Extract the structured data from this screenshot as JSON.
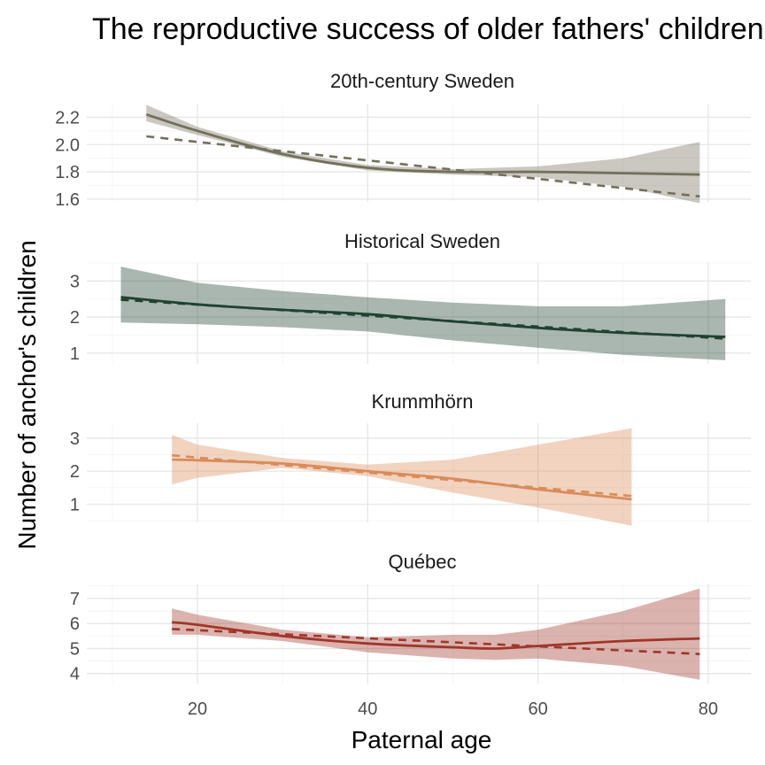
{
  "chart_data": {
    "type": "line",
    "title": "The reproductive success of older fathers' children",
    "xlabel": "Paternal age",
    "ylabel": "Number of anchor's children",
    "xlim": [
      7,
      85
    ],
    "x_ticks": [
      20,
      40,
      60,
      80
    ],
    "grid": true,
    "legend": "none",
    "panels": [
      {
        "name": "20th-century Sweden",
        "color": "#736f5a",
        "ylim": [
          1.58,
          2.3
        ],
        "y_ticks": [
          1.6,
          1.8,
          2.0,
          2.2
        ],
        "y_tick_labels": [
          "1.6",
          "1.8",
          "2.0",
          "2.2"
        ],
        "x": [
          14,
          20,
          30,
          40,
          50,
          60,
          70,
          79
        ],
        "smooth": [
          2.22,
          2.1,
          1.93,
          1.83,
          1.8,
          1.8,
          1.79,
          1.78
        ],
        "lower": [
          2.17,
          2.07,
          1.91,
          1.81,
          1.78,
          1.76,
          1.69,
          1.57
        ],
        "upper": [
          2.29,
          2.13,
          1.95,
          1.85,
          1.82,
          1.84,
          1.9,
          2.02
        ],
        "linear_x": [
          14,
          79
        ],
        "linear": [
          2.06,
          1.62
        ]
      },
      {
        "name": "Historical Sweden",
        "color": "#1f4231",
        "ylim": [
          0.7,
          3.5
        ],
        "y_ticks": [
          1,
          2,
          3
        ],
        "y_tick_labels": [
          "1",
          "2",
          "3"
        ],
        "x": [
          11,
          20,
          30,
          40,
          50,
          60,
          70,
          82
        ],
        "smooth": [
          2.55,
          2.35,
          2.2,
          2.08,
          1.88,
          1.7,
          1.56,
          1.45
        ],
        "lower": [
          1.85,
          1.8,
          1.72,
          1.6,
          1.35,
          1.15,
          0.95,
          0.8
        ],
        "upper": [
          3.4,
          2.95,
          2.72,
          2.55,
          2.4,
          2.3,
          2.3,
          2.5
        ],
        "linear_x": [
          11,
          82
        ],
        "linear": [
          2.48,
          1.4
        ]
      },
      {
        "name": "Krummhörn",
        "color": "#d98c5a",
        "ylim": [
          0.45,
          3.45
        ],
        "y_ticks": [
          1,
          2,
          3
        ],
        "y_tick_labels": [
          "1",
          "2",
          "3"
        ],
        "x": [
          17,
          20,
          30,
          40,
          50,
          60,
          71
        ],
        "smooth": [
          2.35,
          2.33,
          2.23,
          2.0,
          1.77,
          1.45,
          1.15
        ],
        "lower": [
          1.6,
          1.8,
          2.1,
          1.85,
          1.35,
          0.9,
          0.35
        ],
        "upper": [
          3.1,
          2.8,
          2.4,
          2.2,
          2.35,
          2.8,
          3.3
        ],
        "linear_x": [
          17,
          71
        ],
        "linear": [
          2.48,
          1.25
        ]
      },
      {
        "name": "Québec",
        "color": "#a0362a",
        "ylim": [
          3.6,
          7.6
        ],
        "y_ticks": [
          4,
          5,
          6,
          7
        ],
        "y_tick_labels": [
          "4",
          "5",
          "6",
          "7"
        ],
        "x": [
          17,
          20,
          30,
          40,
          50,
          55,
          60,
          70,
          79
        ],
        "smooth": [
          6.05,
          5.95,
          5.5,
          5.2,
          5.05,
          5.0,
          5.1,
          5.3,
          5.4
        ],
        "lower": [
          5.55,
          5.55,
          5.3,
          4.85,
          4.6,
          4.55,
          4.6,
          4.3,
          3.75
        ],
        "upper": [
          6.6,
          6.35,
          5.75,
          5.45,
          5.55,
          5.55,
          5.75,
          6.5,
          7.4
        ],
        "linear_x": [
          17,
          79
        ],
        "linear": [
          5.78,
          4.78
        ]
      }
    ]
  }
}
